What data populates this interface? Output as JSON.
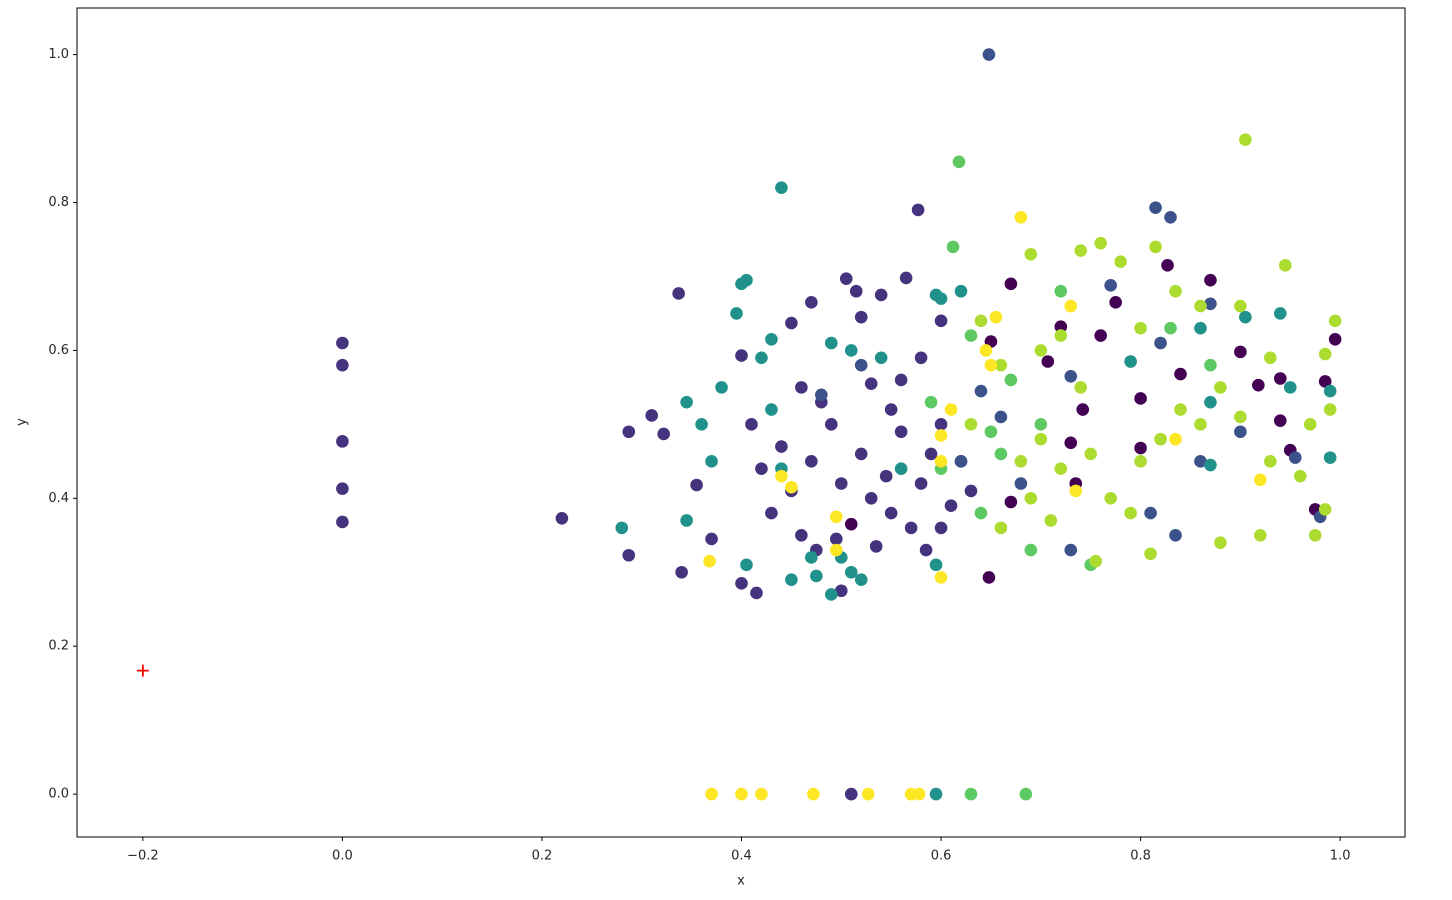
{
  "chart_data": {
    "type": "scatter",
    "x_label": "x",
    "y_label": "y",
    "xlim": [
      -0.266,
      1.065
    ],
    "ylim": [
      -0.058,
      1.063
    ],
    "xticks": [
      {
        "value": -0.2,
        "label": "−0.2"
      },
      {
        "value": 0,
        "label": "0.0"
      },
      0.2,
      0.4,
      0.6,
      0.8,
      {
        "value": 1,
        "label": "1.0"
      }
    ],
    "yticks": [
      {
        "value": 0,
        "label": "0.0"
      },
      0.2,
      0.4,
      0.6,
      0.8,
      {
        "value": 1,
        "label": "1.0"
      }
    ],
    "series": [
      {
        "color": "#440154",
        "marker": "o",
        "x": [
          0.648,
          0.65,
          0.67,
          0.707,
          0.72,
          0.735,
          0.742,
          0.76,
          0.775,
          0.8,
          0.8,
          0.827,
          0.87,
          0.9,
          0.94,
          0.94,
          0.95,
          0.985,
          0.995,
          0.975,
          0.67,
          0.51,
          0.73,
          0.918,
          0.84
        ],
        "values": [
          0.293,
          0.612,
          0.69,
          0.585,
          0.632,
          0.42,
          0.52,
          0.62,
          0.665,
          0.535,
          0.468,
          0.715,
          0.695,
          0.598,
          0.562,
          0.505,
          0.465,
          0.558,
          0.615,
          0.385,
          0.395,
          0.365,
          0.475,
          0.553,
          0.568
        ]
      },
      {
        "color": "#46337e",
        "marker": "o",
        "x": [
          0,
          0,
          0,
          0,
          0,
          0.22,
          0.287,
          0.287,
          0.31,
          0.322,
          0.337,
          0.34,
          0.355,
          0.37,
          0.4,
          0.415,
          0.4,
          0.45,
          0.47,
          0.505,
          0.515,
          0.54,
          0.565,
          0.577,
          0.52,
          0.53,
          0.55,
          0.56,
          0.545,
          0.53,
          0.55,
          0.57,
          0.52,
          0.49,
          0.48,
          0.46,
          0.44,
          0.42,
          0.43,
          0.46,
          0.475,
          0.5,
          0.51,
          0.58,
          0.59,
          0.6,
          0.61,
          0.62,
          0.6,
          0.585,
          0.63,
          0.5,
          0.47,
          0.56,
          0.58,
          0.6,
          0.535,
          0.495,
          0.45,
          0.41
        ],
        "values": [
          0.61,
          0.58,
          0.477,
          0.413,
          0.368,
          0.373,
          0.49,
          0.323,
          0.512,
          0.487,
          0.677,
          0.3,
          0.418,
          0.345,
          0.285,
          0.272,
          0.593,
          0.637,
          0.665,
          0.697,
          0.68,
          0.675,
          0.698,
          0.79,
          0.645,
          0.555,
          0.52,
          0.49,
          0.43,
          0.4,
          0.38,
          0.36,
          0.46,
          0.5,
          0.53,
          0.55,
          0.47,
          0.44,
          0.38,
          0.35,
          0.33,
          0.275,
          0,
          0.42,
          0.46,
          0.5,
          0.39,
          0.45,
          0.36,
          0.33,
          0.41,
          0.42,
          0.45,
          0.56,
          0.59,
          0.64,
          0.335,
          0.345,
          0.41,
          0.5
        ]
      },
      {
        "color": "#3b528b",
        "marker": "o",
        "x": [
          0.648,
          0.815,
          0.83,
          0.77,
          0.81,
          0.835,
          0.86,
          0.73,
          0.68,
          0.73,
          0.82,
          0.64,
          0.87,
          0.9,
          0.955,
          0.98,
          0.62,
          0.66,
          0.48,
          0.52
        ],
        "values": [
          1.0,
          0.793,
          0.78,
          0.688,
          0.38,
          0.35,
          0.45,
          0.33,
          0.42,
          0.565,
          0.61,
          0.545,
          0.663,
          0.49,
          0.455,
          0.375,
          0.45,
          0.51,
          0.54,
          0.58
        ]
      },
      {
        "color": "#21918c",
        "marker": "o",
        "x": [
          0.44,
          0.405,
          0.4,
          0.395,
          0.43,
          0.28,
          0.345,
          0.345,
          0.36,
          0.37,
          0.38,
          0.42,
          0.45,
          0.475,
          0.49,
          0.51,
          0.52,
          0.47,
          0.5,
          0.405,
          0.595,
          0.595,
          0.51,
          0.49,
          0.54,
          0.6,
          0.62,
          0.595,
          0.94,
          0.86,
          0.95,
          0.99,
          0.99,
          0.905,
          0.79,
          0.87,
          0.87,
          0.56,
          0.44,
          0.43
        ],
        "values": [
          0.82,
          0.695,
          0.69,
          0.65,
          0.615,
          0.36,
          0.37,
          0.53,
          0.5,
          0.45,
          0.55,
          0.59,
          0.29,
          0.295,
          0.27,
          0.3,
          0.29,
          0.32,
          0.32,
          0.31,
          0,
          0.31,
          0.6,
          0.61,
          0.59,
          0.67,
          0.68,
          0.675,
          0.65,
          0.63,
          0.55,
          0.545,
          0.455,
          0.645,
          0.585,
          0.53,
          0.445,
          0.44,
          0.44,
          0.52
        ]
      },
      {
        "color": "#5ec962",
        "marker": "o",
        "x": [
          0.618,
          0.612,
          0.63,
          0.685,
          0.64,
          0.69,
          0.66,
          0.65,
          0.7,
          0.75,
          0.6,
          0.59,
          0.72,
          0.83,
          0.87,
          0.67,
          0.63
        ],
        "values": [
          0.855,
          0.74,
          0,
          0,
          0.38,
          0.33,
          0.46,
          0.49,
          0.5,
          0.31,
          0.44,
          0.53,
          0.68,
          0.63,
          0.58,
          0.56,
          0.62
        ]
      },
      {
        "color": "#addc30",
        "marker": "o",
        "x": [
          0.905,
          0.945,
          0.76,
          0.74,
          0.69,
          0.815,
          0.78,
          0.835,
          0.86,
          0.9,
          0.93,
          0.995,
          0.985,
          0.99,
          0.97,
          0.96,
          0.975,
          0.985,
          0.92,
          0.88,
          0.81,
          0.755,
          0.66,
          0.69,
          0.72,
          0.75,
          0.77,
          0.79,
          0.8,
          0.82,
          0.84,
          0.86,
          0.88,
          0.9,
          0.7,
          0.72,
          0.74,
          0.8,
          0.64,
          0.66,
          0.7,
          0.63,
          0.68,
          0.71,
          0.93
        ],
        "values": [
          0.885,
          0.715,
          0.745,
          0.735,
          0.73,
          0.74,
          0.72,
          0.68,
          0.66,
          0.66,
          0.59,
          0.64,
          0.595,
          0.52,
          0.5,
          0.43,
          0.35,
          0.385,
          0.35,
          0.34,
          0.325,
          0.315,
          0.36,
          0.4,
          0.44,
          0.46,
          0.4,
          0.38,
          0.45,
          0.48,
          0.52,
          0.5,
          0.55,
          0.51,
          0.6,
          0.62,
          0.55,
          0.63,
          0.64,
          0.58,
          0.48,
          0.5,
          0.45,
          0.37,
          0.45
        ]
      },
      {
        "color": "#fde725",
        "marker": "o",
        "x": [
          0.37,
          0.4,
          0.42,
          0.472,
          0.527,
          0.57,
          0.578,
          0.368,
          0.6,
          0.68,
          0.655,
          0.73,
          0.92,
          0.735,
          0.45,
          0.44,
          0.495,
          0.495,
          0.6,
          0.6,
          0.65,
          0.645,
          0.61,
          0.835
        ],
        "values": [
          0,
          0,
          0,
          0,
          0,
          0,
          0,
          0.315,
          0.293,
          0.78,
          0.645,
          0.66,
          0.425,
          0.41,
          0.415,
          0.43,
          0.375,
          0.33,
          0.45,
          0.485,
          0.58,
          0.6,
          0.52,
          0.48
        ]
      },
      {
        "color": "#ff0000",
        "marker": "+",
        "x": [
          -0.2
        ],
        "values": [
          0.167
        ]
      }
    ]
  }
}
